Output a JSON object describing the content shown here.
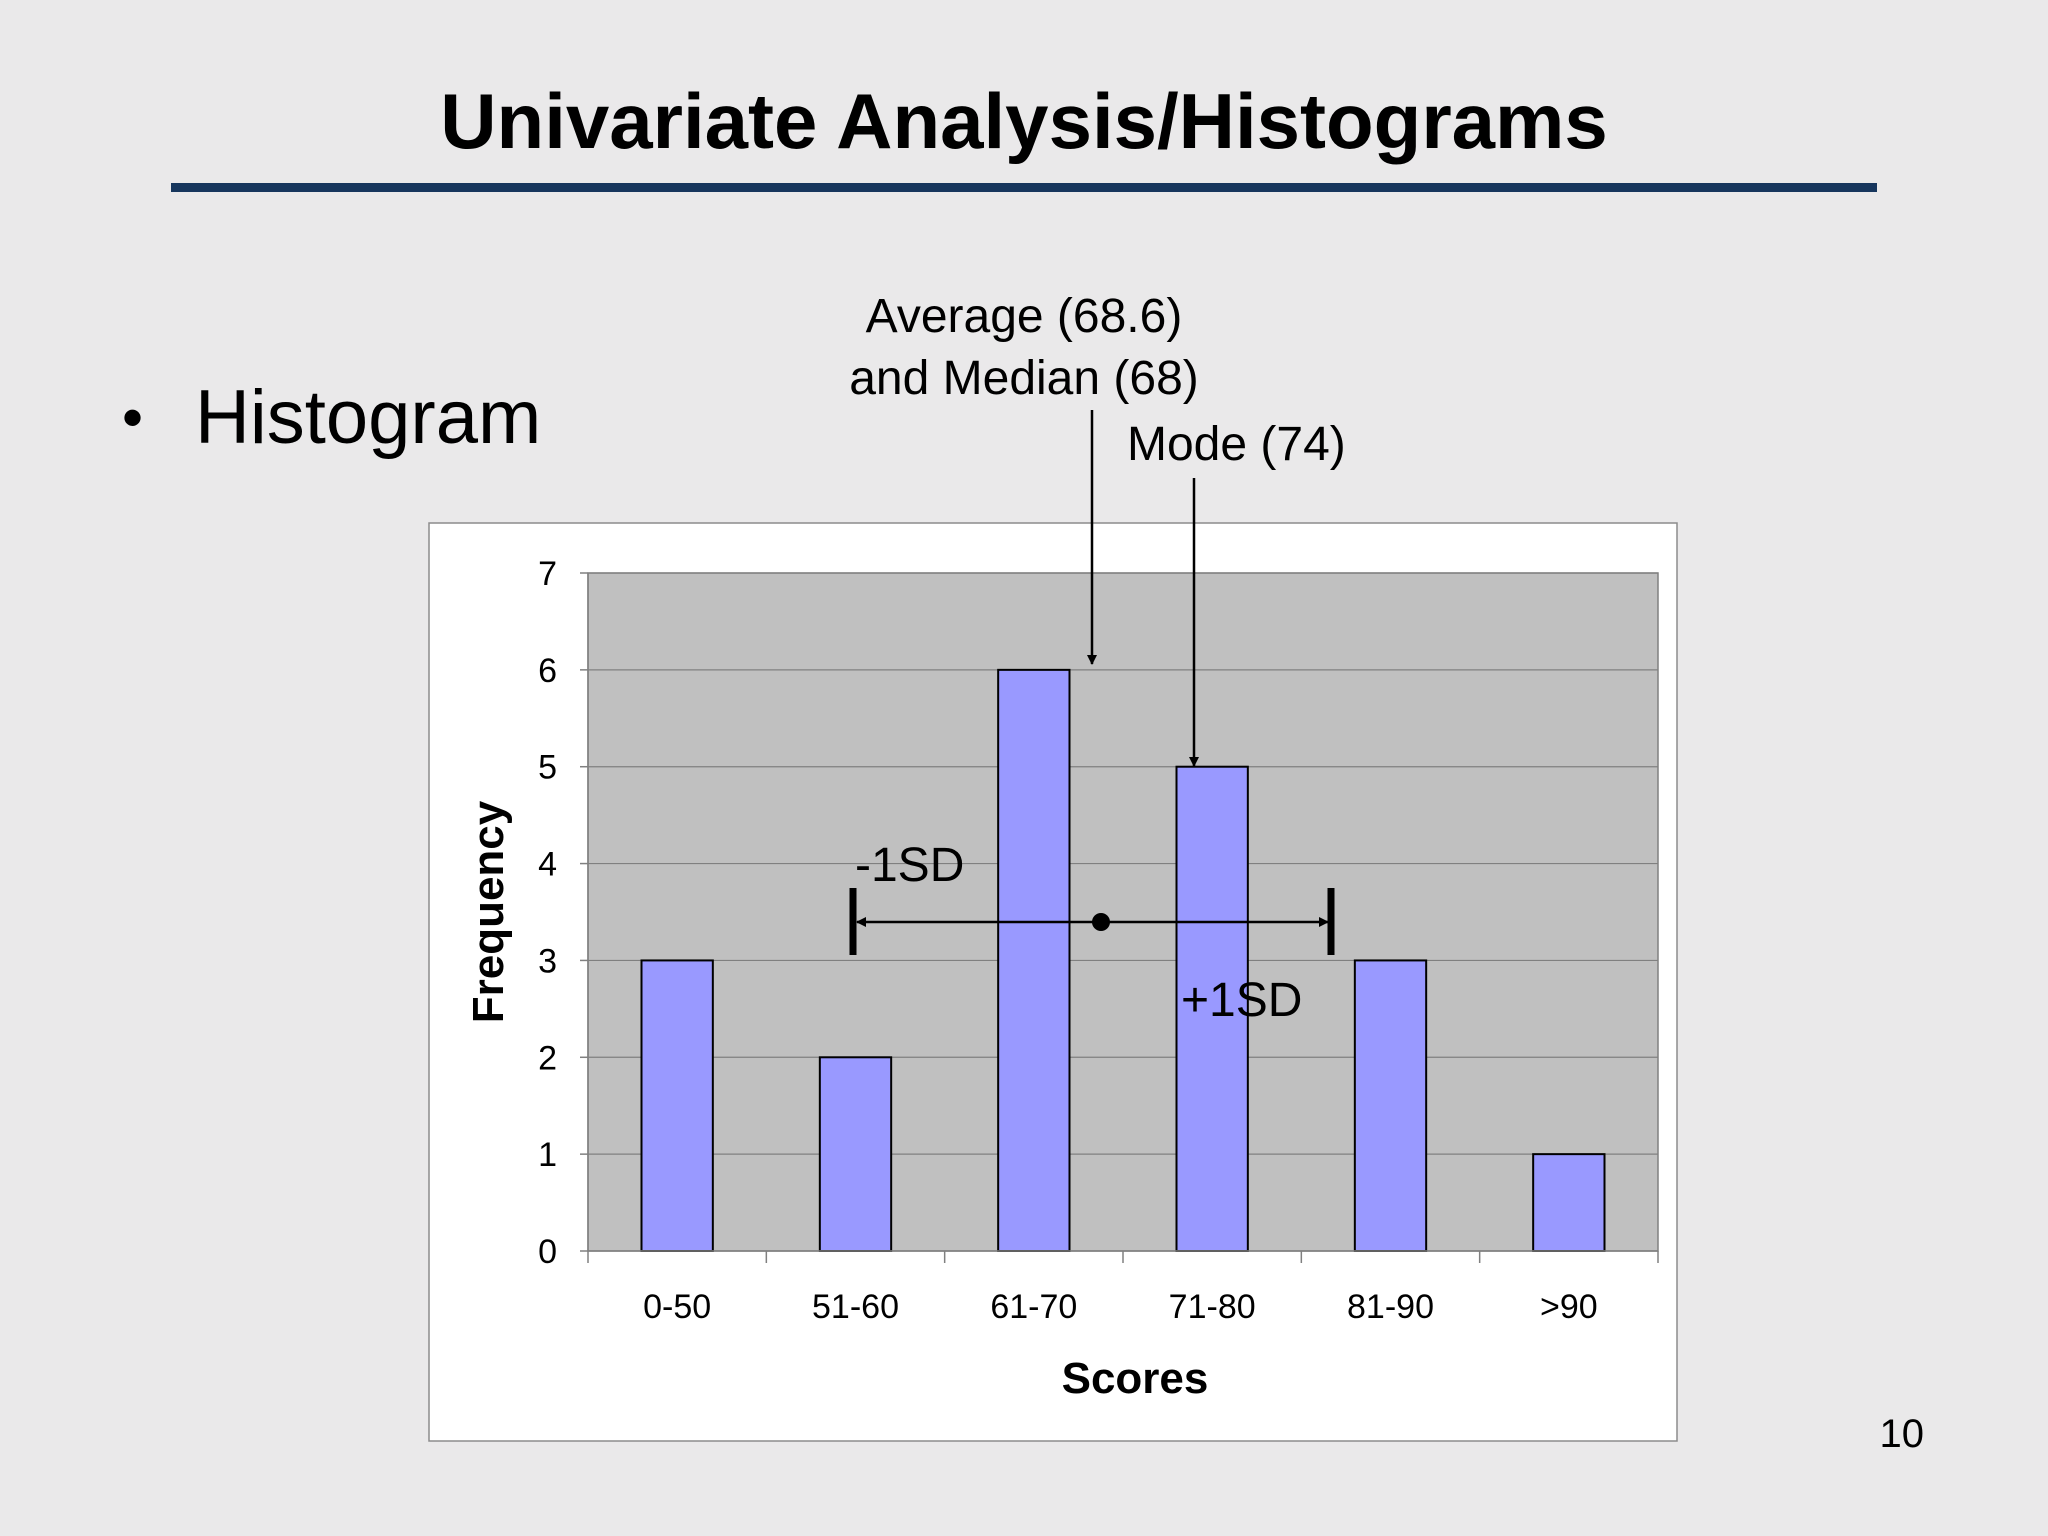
{
  "slide": {
    "title": "Univariate Analysis/Histograms",
    "bullet": "Histogram",
    "page_number": "10"
  },
  "colors": {
    "background": "#eae9ea",
    "title_rule": "#17365d",
    "plot_area": "#c0c0c0",
    "bar_fill": "#9999ff",
    "bar_stroke": "#000000"
  },
  "annotations": {
    "average_line1": "Average (68.6)",
    "average_line2": "and Median (68)",
    "mode": "Mode (74)",
    "minus_sd": "-1SD",
    "plus_sd": "+1SD"
  },
  "chart_data": {
    "type": "bar",
    "categories": [
      "0-50",
      "51-60",
      "61-70",
      "71-80",
      "81-90",
      ">90"
    ],
    "values": [
      3,
      2,
      6,
      5,
      3,
      1
    ],
    "xlabel": "Scores",
    "ylabel": "Frequency",
    "ylim": [
      0,
      7
    ],
    "yticks": [
      "0",
      "1",
      "2",
      "3",
      "4",
      "5",
      "6",
      "7"
    ],
    "grid": true,
    "legend": "none"
  }
}
